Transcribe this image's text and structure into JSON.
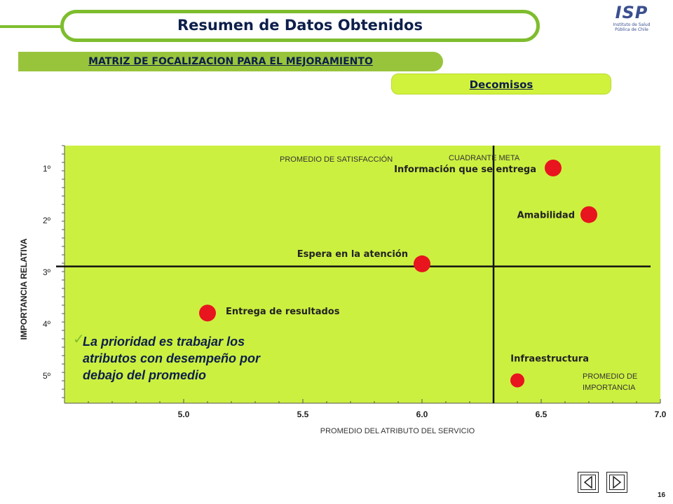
{
  "header": {
    "title": "Resumen de Datos Obtenidos"
  },
  "logo": {
    "word": "ISP",
    "subtitle": "Instituto de Salud Pública de Chile"
  },
  "section": {
    "title": "MATRIZ DE FOCALIZACION PARA EL MEJORAMIENTO",
    "subtitle": "Decomisos"
  },
  "chart_data": {
    "type": "scatter",
    "xlabel": "PROMEDIO DEL ATRIBUTO DEL SERVICIO",
    "ylabel": "IMPORTANCIA RELATIVA",
    "xlim": [
      4.5,
      7.0
    ],
    "ylim": [
      1,
      5
    ],
    "x_ticks": [
      5.0,
      5.5,
      6.0,
      6.5,
      7.0
    ],
    "x_tick_labels": [
      "5.0",
      "5.5",
      "6.0",
      "6.5",
      "7.0"
    ],
    "y_ticks": [
      1,
      2,
      3,
      4,
      5
    ],
    "y_tick_labels": [
      "1º",
      "2º",
      "3º",
      "4º",
      "5º"
    ],
    "y_inverted": true,
    "points": [
      {
        "label": "Información que se entrega",
        "x": 6.55,
        "y": 1.0
      },
      {
        "label": "Amabilidad",
        "x": 6.7,
        "y": 1.9
      },
      {
        "label": "Espera en la atención",
        "x": 6.0,
        "y": 2.85
      },
      {
        "label": "Entrega de resultados",
        "x": 5.1,
        "y": 3.8
      },
      {
        "label": "Infraestructura",
        "x": 6.4,
        "y": 5.1
      }
    ],
    "reference_lines": {
      "x": 6.3,
      "y": 2.9
    },
    "annotations": {
      "satisfaccion": "PROMEDIO DE SATISFACCIÓN",
      "cuadrante": "CUADRANTE  META",
      "importancia_line1": "PROMEDIO DE",
      "importancia_line2": "IMPORTANCIA"
    },
    "colors": {
      "plot_bg": "#ccf040",
      "marker": "#e8141e"
    }
  },
  "note": {
    "line1": "La prioridad es trabajar los",
    "line2": "atributos con desempeño por",
    "line3": "debajo del promedio"
  },
  "page_number": "16"
}
